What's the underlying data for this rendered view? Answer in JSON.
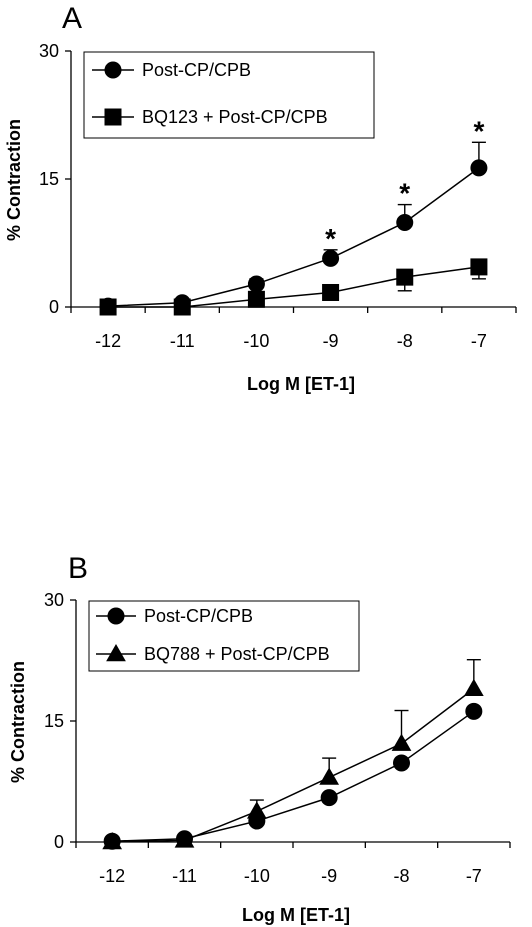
{
  "chart_data": [
    {
      "panel": "A",
      "type": "line",
      "xlabel": "Log M [ET-1]",
      "ylabel": "% Contraction",
      "ylim": [
        0,
        30
      ],
      "yticks": [
        0,
        15,
        30
      ],
      "x": [
        -12,
        -11,
        -10,
        -9,
        -8,
        -7
      ],
      "legend": "top-left",
      "series": [
        {
          "name": "Post-CP/CPB",
          "marker": "circle",
          "values": [
            0.1,
            0.5,
            2.7,
            5.7,
            9.9,
            16.3
          ],
          "err": [
            0,
            0.3,
            0.6,
            1.0,
            2.1,
            3.0
          ]
        },
        {
          "name": "BQ123 + Post-CP/CPB",
          "marker": "square",
          "values": [
            0.0,
            0.0,
            0.9,
            1.7,
            3.5,
            4.7
          ],
          "err": [
            0,
            0,
            0.3,
            0.3,
            1.6,
            1.4
          ],
          "err_dir": "down"
        }
      ],
      "annotations": [
        {
          "x": -9,
          "text": "*"
        },
        {
          "x": -8,
          "text": "*"
        },
        {
          "x": -7,
          "text": "*"
        }
      ]
    },
    {
      "panel": "B",
      "type": "line",
      "xlabel": "Log M [ET-1]",
      "ylabel": "% Contraction",
      "ylim": [
        0,
        30
      ],
      "yticks": [
        0,
        15,
        30
      ],
      "x": [
        -12,
        -11,
        -10,
        -9,
        -8,
        -7
      ],
      "legend": "top-left",
      "series": [
        {
          "name": "Post-CP/CPB",
          "marker": "circle",
          "values": [
            0.1,
            0.4,
            2.6,
            5.5,
            9.8,
            16.2
          ],
          "err": [
            0,
            0,
            0,
            0,
            0,
            0
          ]
        },
        {
          "name": "BQ788 + Post-CP/CPB",
          "marker": "triangle",
          "values": [
            0.0,
            0.2,
            3.8,
            8.0,
            12.2,
            19.0
          ],
          "err": [
            0,
            0,
            1.4,
            2.4,
            4.1,
            3.6
          ]
        }
      ],
      "annotations": []
    }
  ]
}
